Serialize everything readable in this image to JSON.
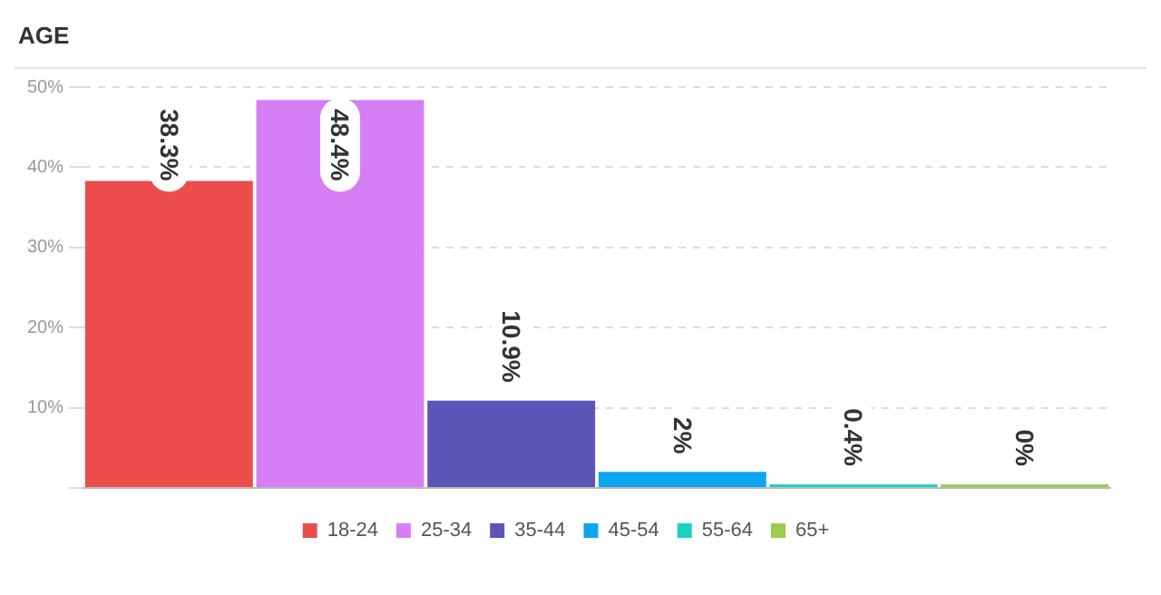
{
  "chart_data": {
    "type": "bar",
    "title": "AGE",
    "categories": [
      null
    ],
    "series": [
      {
        "name": "18-24",
        "color": "#eb4d4b",
        "values": [
          38.3
        ],
        "value_labels": [
          "38.3%"
        ]
      },
      {
        "name": "25-34",
        "color": "#d67ff5",
        "values": [
          48.4
        ],
        "value_labels": [
          "48.4%"
        ]
      },
      {
        "name": "35-44",
        "color": "#5b55b8",
        "values": [
          10.9
        ],
        "value_labels": [
          "10.9%"
        ]
      },
      {
        "name": "45-54",
        "color": "#0ea5f0",
        "values": [
          2
        ],
        "value_labels": [
          "2%"
        ]
      },
      {
        "name": "55-64",
        "color": "#1fd1c1",
        "values": [
          0.4
        ],
        "value_labels": [
          "0.4%"
        ]
      },
      {
        "name": "65+",
        "color": "#9acd4c",
        "values": [
          0
        ],
        "value_labels": [
          "0%"
        ]
      }
    ],
    "ylim": [
      0,
      50
    ],
    "yticks": [
      {
        "value": 0,
        "label": null
      },
      {
        "value": 10,
        "label": "10%"
      },
      {
        "value": 20,
        "label": "20%"
      },
      {
        "value": 30,
        "label": "30%"
      },
      {
        "value": 40,
        "label": "40%"
      },
      {
        "value": 50,
        "label": "50%"
      }
    ],
    "grid": "y",
    "legend": "bottom",
    "tick_labels": "y"
  }
}
